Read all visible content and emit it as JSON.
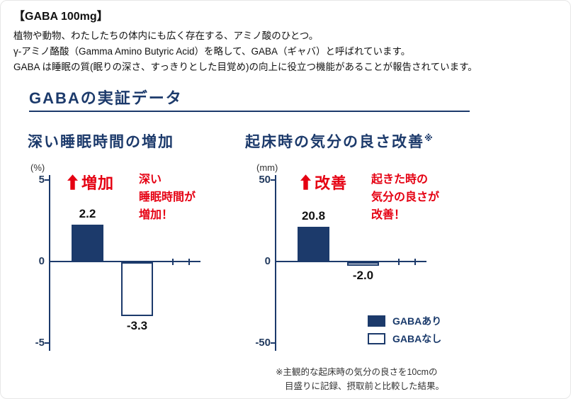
{
  "header": {
    "title": "【GABA 100mg】",
    "lines": [
      "植物や動物、わたしたちの体内にも広く存在する、アミノ酸のひとつ。",
      "γ-アミノ酪酸（Gamma Amino Butyric Acid）を略して、GABA（ギャバ）と呼ばれています。",
      "GABA は睡眠の質(眠りの深さ、すっきりとした目覚め)の向上に役立つ機能があることが報告されています。"
    ]
  },
  "section_title": "GABAの実証データ",
  "chart_data": [
    {
      "type": "bar",
      "title": "深い睡眠時間の増加",
      "title_note": "",
      "ylabel": "(%)",
      "ylim": [
        -5,
        5
      ],
      "yticks": [
        "5",
        "0",
        "-5"
      ],
      "categories": [
        "GABAあり",
        "GABAなし"
      ],
      "values": [
        2.2,
        -3.3
      ],
      "value_labels": [
        "2.2",
        "-3.3"
      ],
      "annotation_badge": "増加",
      "annotation_lines": [
        "深い",
        "睡眠時間が",
        "増加！"
      ],
      "grid": false
    },
    {
      "type": "bar",
      "title": "起床時の気分の良さ改善",
      "title_note": "※",
      "ylabel": "(mm)",
      "ylim": [
        -50,
        50
      ],
      "yticks": [
        "50",
        "0",
        "-50"
      ],
      "categories": [
        "GABAあり",
        "GABAなし"
      ],
      "values": [
        20.8,
        -2.0
      ],
      "value_labels": [
        "20.8",
        "-2.0"
      ],
      "annotation_badge": "改善",
      "annotation_lines": [
        "起きた時の",
        "気分の良さが",
        "改善！"
      ],
      "grid": false
    }
  ],
  "legend": {
    "items": [
      {
        "label": "GABAあり",
        "fill": "filled"
      },
      {
        "label": "GABAなし",
        "fill": "outline"
      }
    ],
    "position": "bottom-right"
  },
  "footnote": {
    "lines": [
      "※主観的な起床時の気分の良さを10cmの",
      "目盛りに記録、摂取前と比較した結果。"
    ]
  },
  "colors": {
    "navy": "#1c3a6b",
    "red": "#e50012",
    "ink": "#1a1a1a"
  }
}
